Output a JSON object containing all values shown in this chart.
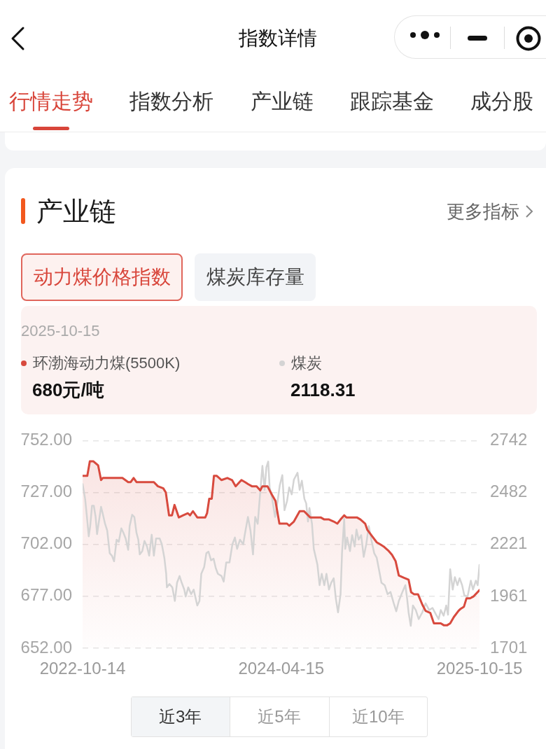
{
  "chart_data": {
    "type": "line",
    "title": "产业链",
    "subtitle": "动力煤价格指数",
    "annotations": [
      "指数详情",
      "行情走势",
      "指数分析",
      "产业链",
      "跟踪基金",
      "成分股",
      "更多指标",
      "煤炭库存量",
      "2025-10-15",
      "680元/吨",
      "2118.31",
      "近3年",
      "近5年",
      "近10年"
    ],
    "xlim": [
      "2022-10-14",
      "2025-10-15"
    ],
    "xticks": [
      "2022-10-14",
      "2024-04-15",
      "2025-10-15"
    ],
    "ylim": [
      652,
      752
    ],
    "yticks": [
      {
        "value": 652,
        "label": "652.00"
      },
      {
        "value": 677,
        "label": "677.00"
      },
      {
        "value": 702,
        "label": "702.00"
      },
      {
        "value": 727,
        "label": "727.00"
      },
      {
        "value": 752,
        "label": "752.00"
      }
    ],
    "y2lim": [
      1701,
      2742
    ],
    "y2ticks": [
      1701,
      1961,
      2221,
      2482,
      2742
    ],
    "grid": "y",
    "legend": "top",
    "marker": "none",
    "series": [
      {
        "name": "环渤海动力煤(5500K)",
        "type": "area",
        "color": "#d84a3e",
        "x": [
          "2022-10-14",
          "2022-10-27",
          "2022-11-03",
          "2022-11-13",
          "2022-11-26",
          "2022-12-04",
          "2022-12-09",
          "2023-02-01",
          "2023-02-17",
          "2023-02-24",
          "2023-03-04",
          "2023-03-12",
          "2023-04-29",
          "2023-05-10",
          "2023-05-25",
          "2023-06-01",
          "2023-06-10",
          "2023-06-18",
          "2023-06-25",
          "2023-07-07",
          "2023-07-19",
          "2023-08-01",
          "2023-08-07",
          "2023-08-15",
          "2023-08-27",
          "2023-09-18",
          "2023-09-23",
          "2023-09-29",
          "2023-10-06",
          "2023-10-12",
          "2023-10-20",
          "2023-11-02",
          "2023-11-18",
          "2023-12-01",
          "2023-12-11",
          "2023-12-27",
          "2024-01-06",
          "2024-01-15",
          "2024-01-25",
          "2024-02-07",
          "2024-02-17",
          "2024-02-23",
          "2024-03-08",
          "2024-03-20",
          "2024-03-30",
          "2024-04-10",
          "2024-05-01",
          "2024-05-07",
          "2024-05-20",
          "2024-06-05",
          "2024-06-17",
          "2024-07-04",
          "2024-08-02",
          "2024-08-12",
          "2024-08-25",
          "2024-09-07",
          "2024-09-17",
          "2024-09-26",
          "2024-10-06",
          "2024-10-12",
          "2024-11-01",
          "2024-11-10",
          "2024-11-20",
          "2024-12-03",
          "2024-12-09",
          "2024-12-22",
          "2025-01-04",
          "2025-01-14",
          "2025-01-23",
          "2025-02-05",
          "2025-02-15",
          "2025-02-25",
          "2025-03-06",
          "2025-03-19",
          "2025-04-02",
          "2025-04-09",
          "2025-04-17",
          "2025-04-28",
          "2025-05-10",
          "2025-05-19",
          "2025-06-01",
          "2025-06-11",
          "2025-06-24",
          "2025-06-30",
          "2025-07-09",
          "2025-07-17",
          "2025-07-26",
          "2025-08-05",
          "2025-08-18",
          "2025-08-24",
          "2025-09-02",
          "2025-09-09",
          "2025-09-19",
          "2025-09-29",
          "2025-10-15"
        ],
        "values": [
          735,
          735,
          742,
          742,
          740,
          733,
          734,
          734,
          732,
          732,
          734,
          732,
          732,
          730,
          729,
          727,
          716,
          716,
          721,
          715,
          716,
          717,
          716,
          718,
          715,
          715,
          717,
          724,
          724,
          735,
          735,
          733,
          734,
          733,
          730,
          733,
          732,
          731,
          730,
          730,
          728,
          730,
          730,
          726,
          723,
          712,
          712,
          711,
          713,
          718,
          718,
          715,
          715,
          714,
          714,
          713,
          712,
          714,
          716,
          715,
          715,
          715,
          714,
          712,
          709,
          706,
          703,
          702,
          701,
          699,
          697,
          694,
          687,
          686,
          685,
          679,
          678,
          678,
          673,
          670,
          669,
          664,
          664,
          664,
          663,
          663,
          664,
          667,
          670,
          671,
          672,
          676,
          676,
          677,
          680
        ]
      },
      {
        "name": "煤炭",
        "type": "line",
        "axis": "y2",
        "color": "#d4d4d4",
        "x": [
          "2022-10-14",
          "2022-10-21",
          "2022-10-26",
          "2022-10-31",
          "2022-11-04",
          "2022-11-09",
          "2022-11-14",
          "2022-11-19",
          "2022-11-23",
          "2022-11-28",
          "2022-12-04",
          "2022-12-08",
          "2022-12-15",
          "2022-12-21",
          "2022-12-28",
          "2023-01-03",
          "2023-01-09",
          "2023-01-16",
          "2023-01-22",
          "2023-01-29",
          "2023-02-04",
          "2023-02-10",
          "2023-02-17",
          "2023-02-21",
          "2023-02-28",
          "2023-03-06",
          "2023-03-12",
          "2023-03-17",
          "2023-03-21",
          "2023-03-28",
          "2023-04-03",
          "2023-04-10",
          "2023-04-16",
          "2023-04-23",
          "2023-04-29",
          "2023-05-05",
          "2023-05-15",
          "2023-05-21",
          "2023-05-28",
          "2023-06-02",
          "2023-06-04",
          "2023-06-11",
          "2023-06-19",
          "2023-06-26",
          "2023-07-02",
          "2023-07-09",
          "2023-07-15",
          "2023-07-22",
          "2023-07-26",
          "2023-08-02",
          "2023-08-10",
          "2023-08-17",
          "2023-08-27",
          "2023-09-02",
          "2023-09-07",
          "2023-09-15",
          "2023-09-21",
          "2023-09-27",
          "2023-10-04",
          "2023-10-11",
          "2023-10-17",
          "2023-10-23",
          "2023-11-02",
          "2023-11-08",
          "2023-11-15",
          "2023-11-24",
          "2023-12-02",
          "2023-12-09",
          "2023-12-15",
          "2023-12-23",
          "2024-01-01",
          "2024-01-05",
          "2024-01-14",
          "2024-01-21",
          "2024-01-28",
          "2024-02-03",
          "2024-02-10",
          "2024-02-18",
          "2024-02-23",
          "2024-02-29",
          "2024-03-05",
          "2024-03-10",
          "2024-03-14",
          "2024-03-21",
          "2024-03-29",
          "2024-04-05",
          "2024-04-11",
          "2024-04-18",
          "2024-04-24",
          "2024-05-01",
          "2024-05-07",
          "2024-05-14",
          "2024-05-20",
          "2024-05-30",
          "2024-06-05",
          "2024-06-11",
          "2024-06-18",
          "2024-06-23",
          "2024-06-28",
          "2024-07-02",
          "2024-07-09",
          "2024-07-14",
          "2024-07-24",
          "2024-07-30",
          "2024-08-05",
          "2024-08-12",
          "2024-08-18",
          "2024-08-25",
          "2024-08-31",
          "2024-09-07",
          "2024-09-13",
          "2024-09-19",
          "2024-09-26",
          "2024-09-30",
          "2024-10-06",
          "2024-10-09",
          "2024-10-14",
          "2024-10-22",
          "2024-10-28",
          "2024-11-04",
          "2024-11-09",
          "2024-11-15",
          "2024-11-22",
          "2024-11-29",
          "2024-12-06",
          "2024-12-13",
          "2024-12-20",
          "2024-12-28",
          "2025-01-04",
          "2025-01-10",
          "2025-01-17",
          "2025-01-26",
          "2025-02-03",
          "2025-02-11",
          "2025-02-20",
          "2025-02-27",
          "2025-03-06",
          "2025-03-16",
          "2025-03-24",
          "2025-03-29",
          "2025-04-02",
          "2025-04-08",
          "2025-04-14",
          "2025-04-22",
          "2025-04-30",
          "2025-05-10",
          "2025-05-19",
          "2025-05-29",
          "2025-06-07",
          "2025-06-17",
          "2025-06-24",
          "2025-06-30",
          "2025-07-08",
          "2025-07-15",
          "2025-07-20",
          "2025-07-26",
          "2025-08-02",
          "2025-08-08",
          "2025-08-15",
          "2025-08-21",
          "2025-08-28",
          "2025-09-03",
          "2025-09-12",
          "2025-09-21",
          "2025-09-27",
          "2025-10-05",
          "2025-10-10",
          "2025-10-15"
        ],
        "values": [
          2524,
          2450,
          2359,
          2262,
          2313,
          2415,
          2415,
          2359,
          2273,
          2336,
          2410,
          2381,
          2325,
          2291,
          2177,
          2165,
          2137,
          2245,
          2234,
          2302,
          2279,
          2251,
          2194,
          2313,
          2370,
          2359,
          2279,
          2245,
          2171,
          2188,
          2239,
          2211,
          2165,
          2270,
          2165,
          2251,
          2251,
          2222,
          2154,
          2074,
          2006,
          2023,
          2006,
          1938,
          2029,
          2063,
          2029,
          1995,
          1960,
          2006,
          1972,
          1995,
          1915,
          1938,
          2074,
          2108,
          2177,
          2185,
          2142,
          2150,
          2103,
          2074,
          2063,
          2035,
          2131,
          2131,
          2222,
          2256,
          2199,
          2245,
          2222,
          2268,
          2359,
          2291,
          2171,
          2359,
          2325,
          2507,
          2615,
          2495,
          2609,
          2637,
          2507,
          2450,
          2359,
          2438,
          2518,
          2569,
          2393,
          2438,
          2507,
          2472,
          2546,
          2581,
          2495,
          2541,
          2450,
          2427,
          2336,
          2404,
          2325,
          2199,
          2120,
          2017,
          2074,
          2017,
          2074,
          1995,
          2029,
          2052,
          1949,
          1881,
          1972,
          2177,
          2350,
          2199,
          2256,
          2188,
          2268,
          2211,
          2296,
          2245,
          2268,
          2159,
          2222,
          2313,
          2245,
          2177,
          2154,
          2097,
          2029,
          2017,
          1972,
          1983,
          1926,
          1886,
          1938,
          1983,
          2017,
          1949,
          1881,
          1813,
          1915,
          1892,
          1847,
          1881,
          1926,
          1892,
          1903,
          1869,
          1847,
          1892,
          1864,
          1915,
          1869,
          2097,
          1995,
          2057,
          2017,
          2052,
          2017,
          1966,
          1960,
          2040,
          1995,
          2040,
          2017,
          2118.31
        ]
      }
    ]
  }
}
